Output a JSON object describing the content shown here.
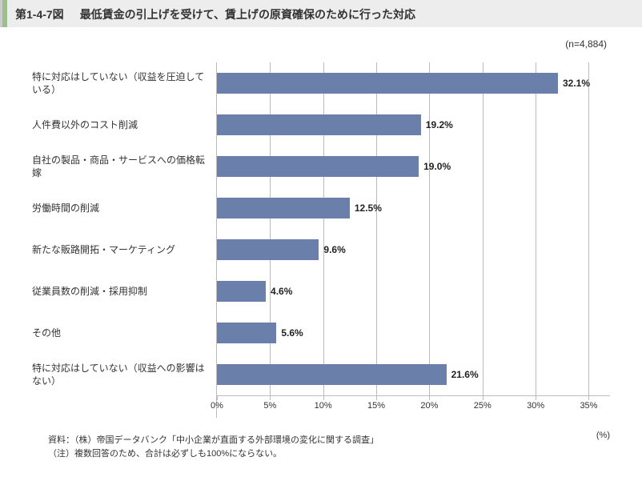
{
  "header": {
    "figure_number": "第1-4-7図",
    "title": "最低賃金の引上げを受けて、賃上げの原資確保のために行った対応"
  },
  "meta": {
    "n_label": "(n=4,884)"
  },
  "chart": {
    "type": "bar",
    "orientation": "horizontal",
    "xlim": [
      0,
      37
    ],
    "xtick_step": 5,
    "xticks": [
      0,
      5,
      10,
      15,
      20,
      25,
      30,
      35
    ],
    "xtick_labels": [
      "0%",
      "5%",
      "10%",
      "15%",
      "20%",
      "25%",
      "30%",
      "35%"
    ],
    "x_unit": "(%)",
    "bar_color": "#6a80ab",
    "grid_color": "#bbbbbb",
    "background_color": "#ffffff",
    "label_fontsize": 12,
    "value_label_fontsize": 12,
    "value_label_weight": "bold",
    "categories": [
      "特に対応はしていない（収益を圧迫している）",
      "人件費以外のコスト削減",
      "自社の製品・商品・サービスへの価格転嫁",
      "労働時間の削減",
      "新たな販路開拓・マーケティング",
      "従業員数の削減・採用抑制",
      "その他",
      "特に対応はしていない（収益への影響はない）"
    ],
    "values": [
      32.1,
      19.2,
      19.0,
      12.5,
      9.6,
      4.6,
      5.6,
      21.6
    ],
    "value_labels": [
      "32.1%",
      "19.2%",
      "19.0%",
      "12.5%",
      "9.6%",
      "4.6%",
      "5.6%",
      "21.6%"
    ]
  },
  "footnotes": {
    "source": "資料：（株）帝国データバンク「中小企業が直面する外部環境の変化に関する調査」",
    "note": "（注）複数回答のため、合計は必ずしも100%にならない。"
  }
}
